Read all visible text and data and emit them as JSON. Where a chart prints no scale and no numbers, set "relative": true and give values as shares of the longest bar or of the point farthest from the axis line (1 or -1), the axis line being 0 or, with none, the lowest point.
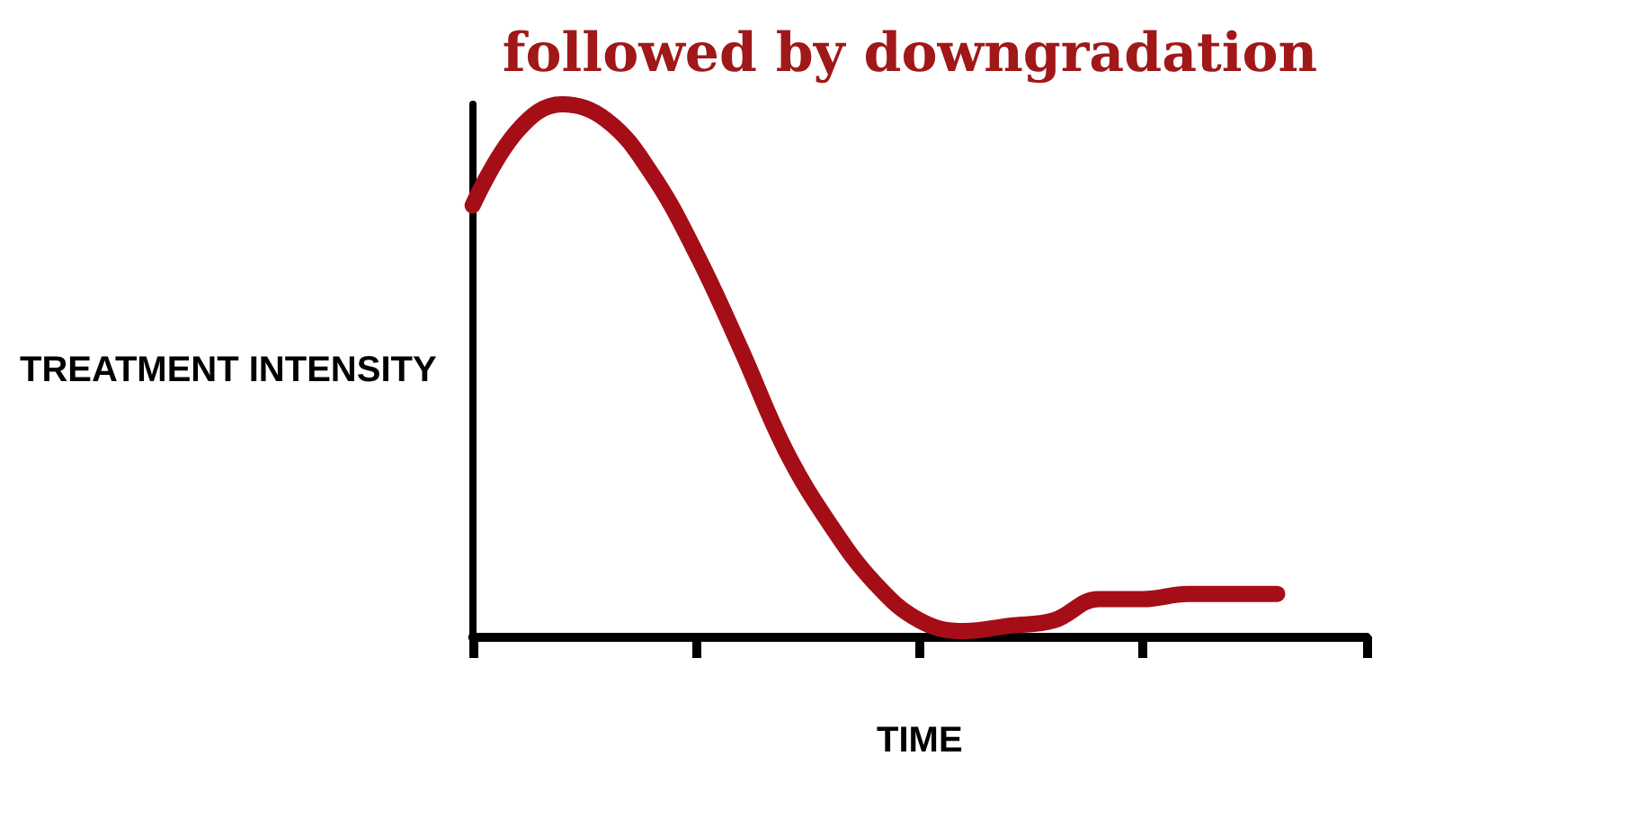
{
  "chart_data": {
    "type": "line",
    "title": "followed by downgradation",
    "xlabel": "TIME",
    "ylabel": "TREATMENT INTENSITY",
    "relative": true,
    "categories": [
      null,
      null,
      null,
      null,
      null,
      null,
      null,
      null,
      null,
      null,
      null,
      null,
      null,
      null,
      null,
      null,
      null,
      null,
      null,
      null,
      null
    ],
    "series": [
      {
        "color": "#a50e16",
        "values": [
          0.81,
          0.95,
          1,
          0.97,
          0.87,
          0.72,
          0.54,
          0.35,
          0.21,
          0.1,
          0.03,
          0.01,
          0.02,
          0.03,
          0.07,
          0.07,
          0.08,
          0.08,
          0.08,
          null,
          null
        ]
      }
    ],
    "grid": false,
    "line_style": "solid"
  }
}
